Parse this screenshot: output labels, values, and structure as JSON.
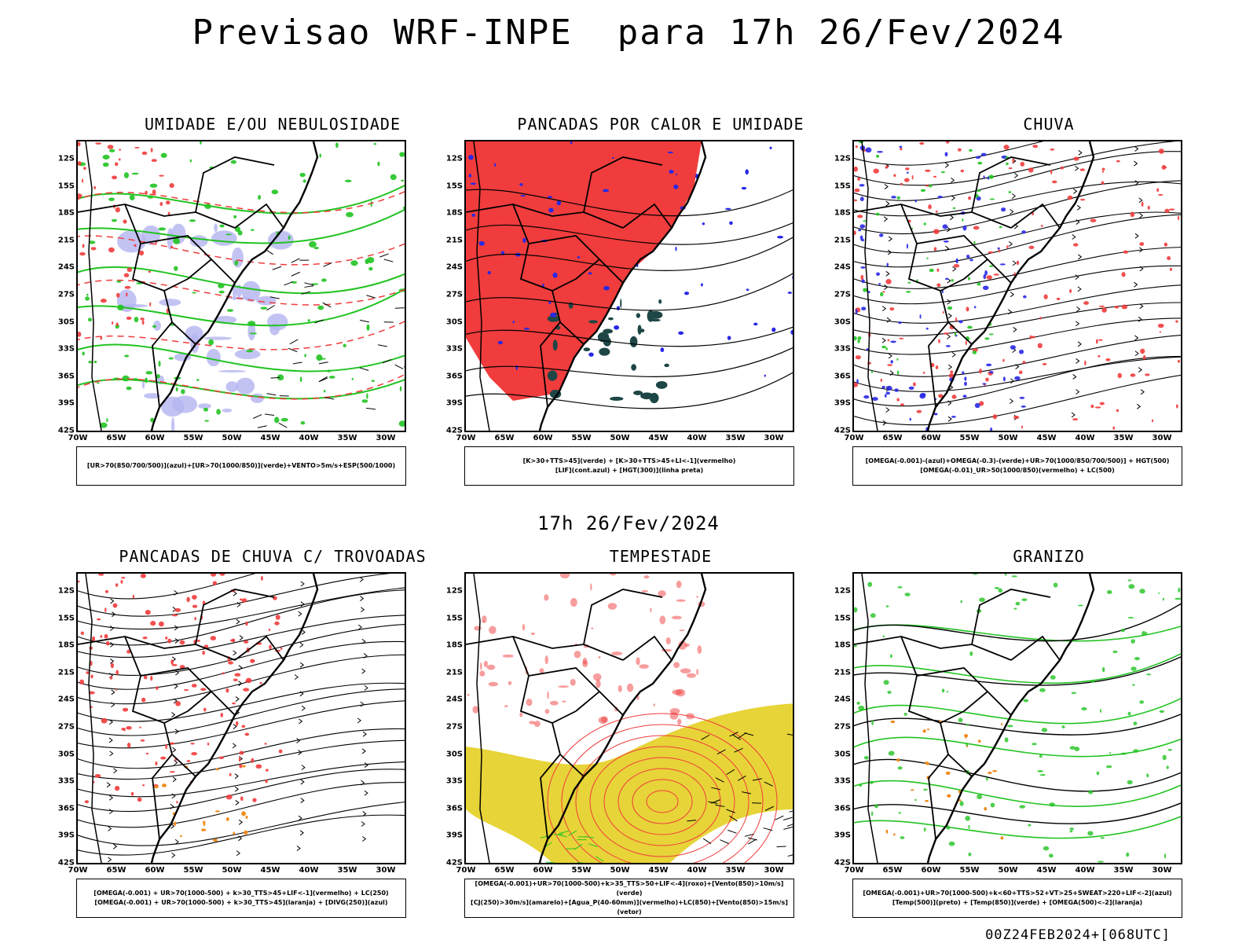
{
  "title": "Previsao WRF-INPE  para 17h 26/Fev/2024",
  "mid_title": "17h 26/Fev/2024",
  "footer": "00Z24FEB2024+[068UTC]",
  "lat_ticks": [
    "12S",
    "15S",
    "18S",
    "21S",
    "24S",
    "27S",
    "30S",
    "33S",
    "36S",
    "39S",
    "42S"
  ],
  "lon_ticks": [
    "70W",
    "65W",
    "60W",
    "55W",
    "50W",
    "45W",
    "40W",
    "35W",
    "30W"
  ],
  "colors": {
    "red": "#f03c3c",
    "green": "#22c322",
    "blue": "#2828e6",
    "lavender": "#b4b4f0",
    "yellow": "#e6d22d",
    "dark_teal": "#1e4646",
    "orange": "#f08c1e",
    "black": "#000000"
  },
  "panels": [
    {
      "title": "UMIDADE E/OU NEBULOSIDADE",
      "legend": [
        "[UR>70(850/700/500)](azul)+[UR>70(1000/850)](verde)+VENTO>5m/s+ESP(500/1000)"
      ],
      "icons": [
        "lavender-shading",
        "green-contour",
        "red-dashed-contour",
        "wind-arrow"
      ]
    },
    {
      "title": "PANCADAS POR CALOR E UMIDADE",
      "legend": [
        "[K>30+TTS>45](verde) + [K>30+TTS>45+LI<-1](vermelho)",
        "[LIF](cont.azul) + [HGT(300)](linha preta)"
      ],
      "icons": [
        "red-shading",
        "dark-teal-shading",
        "blue-contour",
        "black-contour"
      ]
    },
    {
      "title": "CHUVA",
      "legend": [
        "[OMEGA(-0.001)-(azul)+OMEGA(-0.3)-(verde)+UR>70(1000/850/700/500)] + HGT(500)",
        "[OMEGA(-0.01)_UR>50(1000/850)(vermelho) + LC(500)"
      ],
      "icons": [
        "blue-shading",
        "green-shading",
        "red-shading",
        "streamline"
      ]
    },
    {
      "title": "PANCADAS DE CHUVA C/ TROVOADAS",
      "legend": [
        "[OMEGA(-0.001) + UR>70(1000-500) + k>30_TTS>45+LIF<-1](vermelho) + LC(250)",
        "[OMEGA(-0.001) + UR>70(1000-500) + k>30_TTS>45](laranja) + [DIVG(250)](azul)"
      ],
      "icons": [
        "red-shading",
        "orange-shading",
        "streamline"
      ]
    },
    {
      "title": "TEMPESTADE",
      "legend": [
        "[OMEGA(-0.001)+UR>70(1000-500)+k>35_TTS>50+LIF<-4](roxo)+[Vento(850)>10m/s](verde)",
        "[CJ(250)>30m/s](amarelo)+[Agua_P(40-60mm)](vermelho)+LC(850)+[Vento(850)>15m/s](vetor)"
      ],
      "icons": [
        "yellow-shading",
        "red-contour",
        "wind-arrow"
      ]
    },
    {
      "title": "GRANIZO",
      "legend": [
        "[OMEGA(-0.001)+UR>70(1000-500)+k<60+TTS>52+VT>25+SWEAT>220+LIF<-2](azul)",
        "[Temp(500)](preto) + [Temp(850)](verde) + [OMEGA(500)<-2](laranja)"
      ],
      "icons": [
        "green-contour",
        "black-contour",
        "orange-shading"
      ]
    }
  ]
}
